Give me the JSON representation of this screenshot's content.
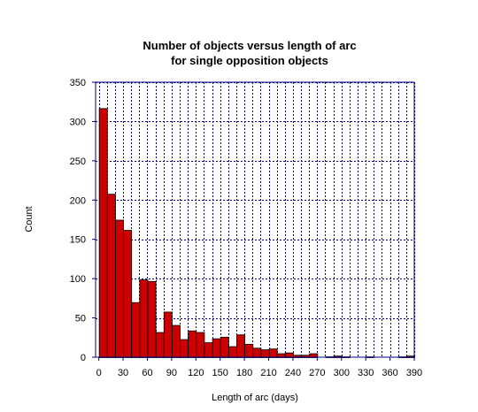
{
  "chart_data": {
    "type": "bar",
    "title_line1": "Number of objects versus length of arc",
    "title_line2": "for single opposition objects",
    "xlabel": "Length of arc (days)",
    "ylabel": "Count",
    "xlim": [
      -4,
      390
    ],
    "ylim": [
      0,
      350
    ],
    "xticks": [
      0,
      30,
      60,
      90,
      120,
      150,
      180,
      210,
      240,
      270,
      300,
      330,
      360,
      390
    ],
    "yticks": [
      0,
      50,
      100,
      150,
      200,
      250,
      300,
      350
    ],
    "grid_x_step": 10,
    "grid_y_step": 50,
    "grid": true,
    "bin_width": 10,
    "bar_color": "#cc0000",
    "grid_color": "#000080",
    "x": [
      0,
      10,
      20,
      30,
      40,
      50,
      60,
      70,
      80,
      90,
      100,
      110,
      120,
      130,
      140,
      150,
      160,
      170,
      180,
      190,
      200,
      210,
      220,
      230,
      240,
      250,
      260,
      270,
      280,
      290,
      300,
      310,
      320,
      330,
      340,
      350,
      360,
      370,
      380
    ],
    "values": [
      317,
      208,
      175,
      162,
      70,
      99,
      97,
      32,
      58,
      41,
      23,
      34,
      32,
      19,
      24,
      26,
      14,
      29,
      17,
      12,
      10,
      11,
      5,
      6,
      3,
      3,
      5,
      0,
      1,
      2,
      1,
      0,
      0,
      1,
      0,
      0,
      0,
      1,
      2
    ]
  }
}
